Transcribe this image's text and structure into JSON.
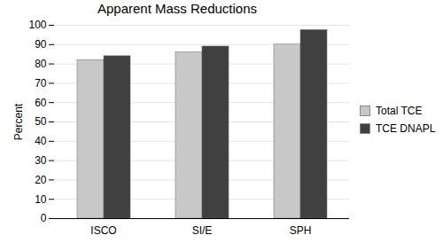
{
  "chart_data": {
    "type": "bar",
    "title": "Apparent Mass Reductions",
    "y_label": "Percent",
    "categories": [
      "ISCO",
      "SI/E",
      "SPH"
    ],
    "series": [
      {
        "name": "Total TCE",
        "color": "#c8c8c8",
        "values": [
          82,
          86,
          90
        ]
      },
      {
        "name": "TCE DNAPL",
        "color": "#404040",
        "values": [
          84,
          89,
          97.5
        ]
      }
    ],
    "ylim": [
      0,
      100
    ],
    "yticks": [
      0,
      10,
      20,
      30,
      40,
      50,
      60,
      70,
      80,
      90,
      100
    ],
    "grid": true,
    "legend": "right"
  }
}
